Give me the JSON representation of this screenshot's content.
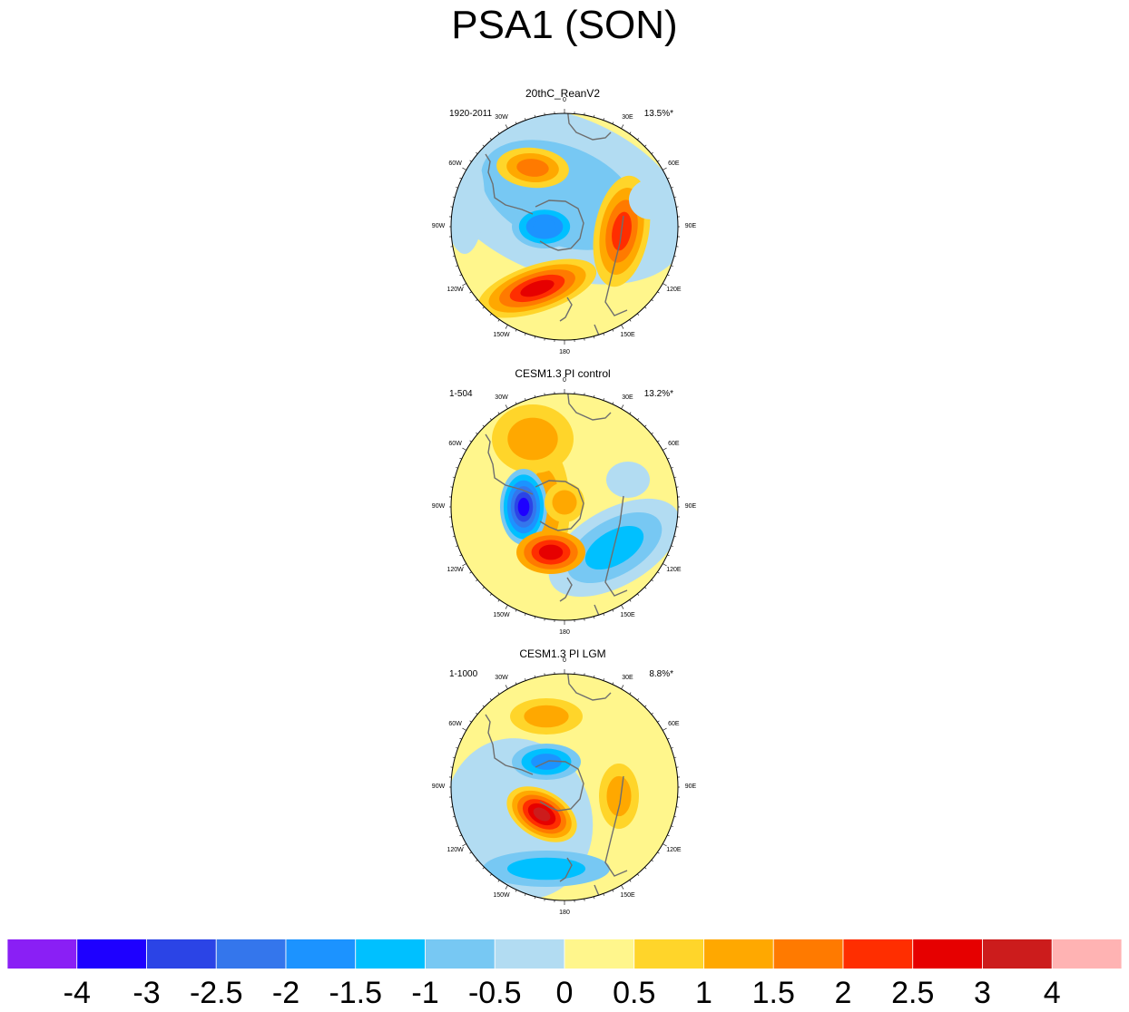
{
  "title": "PSA1 (SON)",
  "chart_data": {
    "type": "heatmap",
    "title": "PSA1 (SON)",
    "projection": "south polar stereographic",
    "longitude_labels": [
      "0",
      "30E",
      "60E",
      "90E",
      "120E",
      "150E",
      "180",
      "150W",
      "120W",
      "90W",
      "60W",
      "30W"
    ],
    "panels": [
      {
        "title": "20thC_ReanV2",
        "left_label": "1920-2011",
        "right_label": "13.5%*"
      },
      {
        "title": "CESM1.3 PI control",
        "left_label": "1-504",
        "right_label": "13.2%*"
      },
      {
        "title": "CESM1.3 PI LGM",
        "left_label": "1-1000",
        "right_label": "8.8%*"
      }
    ],
    "colorbar": {
      "labels": [
        "-4",
        "-3",
        "-2.5",
        "-2",
        "-1.5",
        "-1",
        "-0.5",
        "0",
        "0.5",
        "1",
        "1.5",
        "2",
        "2.5",
        "3",
        "4"
      ],
      "colors": [
        "#8a1ff5",
        "#1e00ff",
        "#2b44e6",
        "#3476ec",
        "#1c93ff",
        "#00c0ff",
        "#77c8f3",
        "#b2dcf2",
        "#fff68c",
        "#ffd52a",
        "#ffa800",
        "#ff7a00",
        "#ff2e00",
        "#e60000",
        "#cc1c1c",
        "#ffb3b3"
      ]
    }
  }
}
